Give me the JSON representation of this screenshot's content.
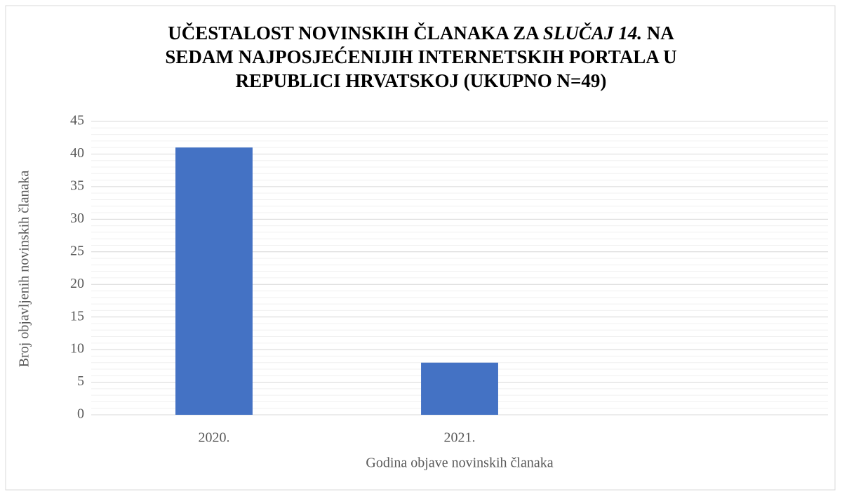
{
  "chart_data": {
    "type": "bar",
    "title": [
      "UČESTALOST NOVINSKIH ČLANAKA ZA",
      "SLUČAJ 14.",
      "NA",
      "SEDAM NAJPOSJEĆENIJIH INTERNETSKIH PORTALA U",
      "REPUBLICI HRVATSKOJ (UKUPNO N=49)"
    ],
    "x_label": "Godina objave novinskih članaka",
    "y_label": "Broj objavljenih novinskih članaka",
    "categories": [
      "2020.",
      "2021.",
      null
    ],
    "values": [
      41,
      8,
      null
    ],
    "color": "#4472c4",
    "ylim": [
      0,
      45
    ],
    "yticks": [
      0,
      5,
      10,
      15,
      20,
      25,
      30,
      35,
      40,
      45
    ],
    "grid": true,
    "minor_grid_step": 1
  }
}
